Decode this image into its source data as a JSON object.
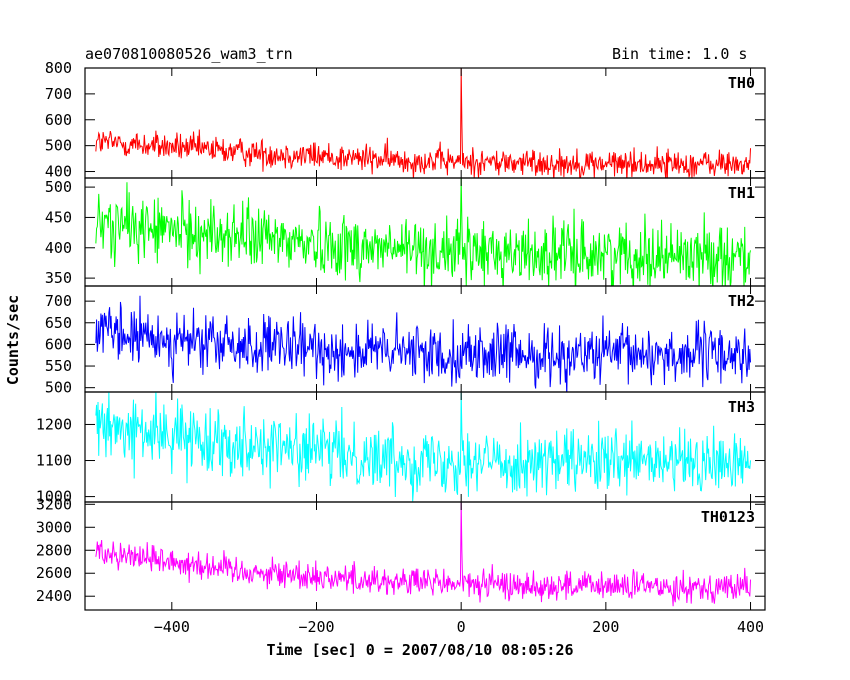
{
  "header": {
    "title": "ae070810080526_wam3_trn",
    "bin_time": "Bin time: 1.0 s"
  },
  "chart_data": {
    "type": "line",
    "xlabel": "Time [sec] 0 = 2007/08/10 08:05:26",
    "ylabel": "Counts/sec",
    "xlim": [
      -520,
      420
    ],
    "x_ticks": [
      -400,
      -200,
      0,
      200,
      400
    ],
    "x_ticklabels": [
      "−400",
      "−200",
      "0",
      "200",
      "400"
    ],
    "data_range": [
      -505,
      400
    ],
    "grid": false,
    "panels": [
      {
        "name": "TH0",
        "color": "#ff0000",
        "ylim": [
          375,
          800
        ],
        "ticks": [
          400,
          500,
          600,
          700,
          800
        ],
        "ticklabels": [
          "400",
          "500",
          "600",
          "700",
          "800"
        ],
        "trend": [
          [
            -505,
            515
          ],
          [
            -300,
            475
          ],
          [
            -100,
            445
          ],
          [
            100,
            432
          ],
          [
            400,
            428
          ]
        ],
        "noise": 28,
        "spike": {
          "x": 0,
          "peak": 800
        }
      },
      {
        "name": "TH1",
        "color": "#00ff00",
        "ylim": [
          337,
          515
        ],
        "ticks": [
          350,
          400,
          450,
          500
        ],
        "ticklabels": [
          "350",
          "400",
          "450",
          "500"
        ],
        "trend": [
          [
            -505,
            440
          ],
          [
            -300,
            418
          ],
          [
            -100,
            398
          ],
          [
            100,
            390
          ],
          [
            400,
            388
          ]
        ],
        "noise": 27,
        "spike": {
          "x": 0,
          "peak": 515
        }
      },
      {
        "name": "TH2",
        "color": "#0000ff",
        "ylim": [
          490,
          735
        ],
        "ticks": [
          500,
          550,
          600,
          650,
          700
        ],
        "ticklabels": [
          "500",
          "550",
          "600",
          "650",
          "700"
        ],
        "trend": [
          [
            -505,
            625
          ],
          [
            -300,
            595
          ],
          [
            -100,
            582
          ],
          [
            100,
            575
          ],
          [
            400,
            578
          ]
        ],
        "noise": 34,
        "spike": null
      },
      {
        "name": "TH3",
        "color": "#00ffff",
        "ylim": [
          985,
          1290
        ],
        "ticks": [
          1000,
          1100,
          1200
        ],
        "ticklabels": [
          "1000",
          "1100",
          "1200"
        ],
        "trend": [
          [
            -505,
            1190
          ],
          [
            -300,
            1150
          ],
          [
            -100,
            1105
          ],
          [
            100,
            1095
          ],
          [
            400,
            1090
          ]
        ],
        "noise": 45,
        "spike": {
          "x": 0,
          "peak": 1290
        }
      },
      {
        "name": "TH0123",
        "color": "#ff00ff",
        "ylim": [
          2280,
          3220
        ],
        "ticks": [
          2400,
          2600,
          2800,
          3000,
          3200
        ],
        "ticklabels": [
          "2400",
          "2600",
          "2800",
          "3000",
          "3200"
        ],
        "trend": [
          [
            -505,
            2800
          ],
          [
            -300,
            2620
          ],
          [
            -100,
            2530
          ],
          [
            100,
            2490
          ],
          [
            400,
            2480
          ]
        ],
        "noise": 65,
        "spike": {
          "x": 0,
          "peak": 3220
        }
      }
    ]
  }
}
